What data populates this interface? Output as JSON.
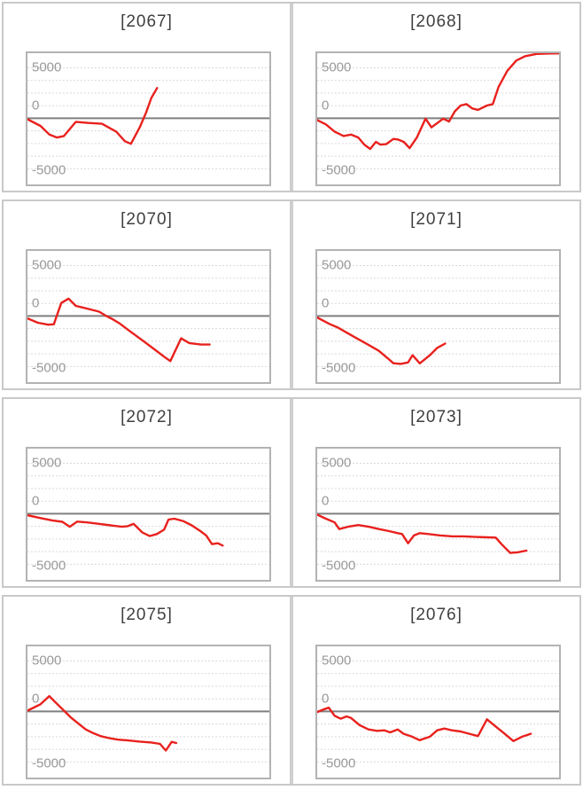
{
  "page": {
    "background": "#ffffff",
    "description": "Grid of eight small line charts (sparkline panels), two per row"
  },
  "styles": {
    "line_color": "#e8211d",
    "grid_line_color": "#d9d9d9",
    "zero_line_color": "#7f7f7f",
    "plot_border_color": "#b3b3b3",
    "cell_border_color": "#c9c9c9",
    "title_color": "#3f3f3f",
    "tick_label_color": "#999999"
  },
  "axis": {
    "y_min": -6550,
    "y_max": 6450,
    "grid_interval": 1250,
    "grid_values": [
      5000,
      3750,
      2500,
      1250,
      -1250,
      -2500,
      -3750,
      -5000
    ],
    "zero_line_value": 0,
    "ticks": [
      {
        "label": "5000",
        "value": 5000
      },
      {
        "label": "0",
        "value": 0
      },
      {
        "label": "-5000",
        "value": -5000
      }
    ]
  },
  "chart_data": [
    {
      "type": "line",
      "title": "[2067]",
      "xlabel": "",
      "ylabel": "",
      "ylim": [
        -6550,
        6450
      ],
      "points": [
        [
          0,
          -90
        ],
        [
          0.054,
          -750
        ],
        [
          0.091,
          -1610
        ],
        [
          0.122,
          -1900
        ],
        [
          0.151,
          -1750
        ],
        [
          0.2,
          -350
        ],
        [
          0.253,
          -460
        ],
        [
          0.308,
          -540
        ],
        [
          0.367,
          -1320
        ],
        [
          0.403,
          -2270
        ],
        [
          0.428,
          -2530
        ],
        [
          0.464,
          -890
        ],
        [
          0.49,
          550
        ],
        [
          0.512,
          2010
        ],
        [
          0.536,
          3000
        ]
      ]
    },
    {
      "type": "line",
      "title": "[2068]",
      "xlabel": "",
      "ylabel": "",
      "ylim": [
        -6550,
        6450
      ],
      "points": [
        [
          0,
          -170
        ],
        [
          0.036,
          -600
        ],
        [
          0.072,
          -1320
        ],
        [
          0.109,
          -1750
        ],
        [
          0.14,
          -1610
        ],
        [
          0.17,
          -1900
        ],
        [
          0.195,
          -2610
        ],
        [
          0.219,
          -3040
        ],
        [
          0.243,
          -2330
        ],
        [
          0.261,
          -2610
        ],
        [
          0.285,
          -2560
        ],
        [
          0.315,
          -2040
        ],
        [
          0.333,
          -2100
        ],
        [
          0.358,
          -2330
        ],
        [
          0.382,
          -2960
        ],
        [
          0.412,
          -1900
        ],
        [
          0.448,
          -30
        ],
        [
          0.472,
          -890
        ],
        [
          0.497,
          -460
        ],
        [
          0.521,
          -30
        ],
        [
          0.545,
          -320
        ],
        [
          0.569,
          690
        ],
        [
          0.593,
          1270
        ],
        [
          0.617,
          1410
        ],
        [
          0.641,
          980
        ],
        [
          0.665,
          840
        ],
        [
          0.702,
          1270
        ],
        [
          0.726,
          1410
        ],
        [
          0.75,
          3130
        ],
        [
          0.786,
          4710
        ],
        [
          0.823,
          5720
        ],
        [
          0.859,
          6150
        ],
        [
          0.907,
          6380
        ],
        [
          0.967,
          6420
        ],
        [
          1,
          6430
        ]
      ]
    },
    {
      "type": "line",
      "title": "[2070]",
      "xlabel": "",
      "ylabel": "",
      "ylim": [
        -6550,
        6450
      ],
      "points": [
        [
          0,
          -233
        ],
        [
          0.043,
          -663
        ],
        [
          0.086,
          -861
        ],
        [
          0.109,
          -810
        ],
        [
          0.127,
          431
        ],
        [
          0.14,
          1293
        ],
        [
          0.17,
          1724
        ],
        [
          0.2,
          1006
        ],
        [
          0.224,
          862
        ],
        [
          0.26,
          655
        ],
        [
          0.296,
          431
        ],
        [
          0.326,
          0
        ],
        [
          0.35,
          -287
        ],
        [
          0.38,
          -718
        ],
        [
          0.428,
          -1580
        ],
        [
          0.477,
          -2442
        ],
        [
          0.525,
          -3304
        ],
        [
          0.573,
          -4166
        ],
        [
          0.591,
          -4460
        ],
        [
          0.635,
          -2215
        ],
        [
          0.669,
          -2675
        ],
        [
          0.717,
          -2822
        ],
        [
          0.753,
          -2822
        ]
      ]
    },
    {
      "type": "line",
      "title": "[2071]",
      "xlabel": "",
      "ylabel": "",
      "ylim": [
        -6550,
        6450
      ],
      "points": [
        [
          0,
          -150
        ],
        [
          0.05,
          -780
        ],
        [
          0.086,
          -1150
        ],
        [
          0.128,
          -1724
        ],
        [
          0.17,
          -2300
        ],
        [
          0.213,
          -2870
        ],
        [
          0.255,
          -3448
        ],
        [
          0.291,
          -4166
        ],
        [
          0.315,
          -4680
        ],
        [
          0.345,
          -4740
        ],
        [
          0.376,
          -4597
        ],
        [
          0.394,
          -3880
        ],
        [
          0.424,
          -4690
        ],
        [
          0.466,
          -3880
        ],
        [
          0.496,
          -3160
        ],
        [
          0.529,
          -2730
        ]
      ]
    },
    {
      "type": "line",
      "title": "[2072]",
      "xlabel": "",
      "ylabel": "",
      "ylim": [
        -6550,
        6450
      ],
      "points": [
        [
          0,
          -144
        ],
        [
          0.054,
          -431
        ],
        [
          0.102,
          -660
        ],
        [
          0.144,
          -800
        ],
        [
          0.175,
          -1290
        ],
        [
          0.205,
          -775
        ],
        [
          0.247,
          -860
        ],
        [
          0.295,
          -1000
        ],
        [
          0.343,
          -1150
        ],
        [
          0.391,
          -1290
        ],
        [
          0.415,
          -1230
        ],
        [
          0.439,
          -1000
        ],
        [
          0.475,
          -1860
        ],
        [
          0.505,
          -2210
        ],
        [
          0.535,
          -2010
        ],
        [
          0.565,
          -1580
        ],
        [
          0.583,
          -575
        ],
        [
          0.607,
          -490
        ],
        [
          0.643,
          -718
        ],
        [
          0.679,
          -1150
        ],
        [
          0.715,
          -1720
        ],
        [
          0.739,
          -2150
        ],
        [
          0.763,
          -3010
        ],
        [
          0.787,
          -2925
        ],
        [
          0.807,
          -3155
        ]
      ]
    },
    {
      "type": "line",
      "title": "[2073]",
      "xlabel": "",
      "ylabel": "",
      "ylim": [
        -6550,
        6450
      ],
      "points": [
        [
          0,
          -86
        ],
        [
          0.036,
          -490
        ],
        [
          0.072,
          -860
        ],
        [
          0.091,
          -1520
        ],
        [
          0.127,
          -1290
        ],
        [
          0.17,
          -1120
        ],
        [
          0.213,
          -1290
        ],
        [
          0.255,
          -1520
        ],
        [
          0.297,
          -1720
        ],
        [
          0.333,
          -1920
        ],
        [
          0.351,
          -2010
        ],
        [
          0.376,
          -2925
        ],
        [
          0.4,
          -2150
        ],
        [
          0.424,
          -1920
        ],
        [
          0.46,
          -2010
        ],
        [
          0.509,
          -2150
        ],
        [
          0.557,
          -2240
        ],
        [
          0.605,
          -2240
        ],
        [
          0.654,
          -2300
        ],
        [
          0.702,
          -2330
        ],
        [
          0.738,
          -2360
        ],
        [
          0.762,
          -3010
        ],
        [
          0.798,
          -3880
        ],
        [
          0.829,
          -3820
        ],
        [
          0.865,
          -3650
        ]
      ]
    },
    {
      "type": "line",
      "title": "[2075]",
      "xlabel": "",
      "ylabel": "",
      "ylim": [
        -6550,
        6450
      ],
      "points": [
        [
          0,
          86
        ],
        [
          0.03,
          431
        ],
        [
          0.054,
          718
        ],
        [
          0.09,
          1520
        ],
        [
          0.12,
          800
        ],
        [
          0.151,
          86
        ],
        [
          0.181,
          -630
        ],
        [
          0.211,
          -1210
        ],
        [
          0.241,
          -1780
        ],
        [
          0.272,
          -2150
        ],
        [
          0.302,
          -2440
        ],
        [
          0.338,
          -2640
        ],
        [
          0.374,
          -2790
        ],
        [
          0.416,
          -2870
        ],
        [
          0.464,
          -2980
        ],
        [
          0.512,
          -3070
        ],
        [
          0.548,
          -3210
        ],
        [
          0.572,
          -3870
        ],
        [
          0.596,
          -3010
        ],
        [
          0.615,
          -3120
        ]
      ]
    },
    {
      "type": "line",
      "title": "[2076]",
      "xlabel": "",
      "ylabel": "",
      "ylim": [
        -6550,
        6450
      ],
      "points": [
        [
          0,
          -57
        ],
        [
          0.03,
          230
        ],
        [
          0.048,
          373
        ],
        [
          0.072,
          -430
        ],
        [
          0.097,
          -718
        ],
        [
          0.121,
          -490
        ],
        [
          0.139,
          -630
        ],
        [
          0.175,
          -1350
        ],
        [
          0.212,
          -1780
        ],
        [
          0.248,
          -1920
        ],
        [
          0.278,
          -1865
        ],
        [
          0.302,
          -2070
        ],
        [
          0.333,
          -1780
        ],
        [
          0.357,
          -2210
        ],
        [
          0.393,
          -2500
        ],
        [
          0.423,
          -2840
        ],
        [
          0.466,
          -2500
        ],
        [
          0.496,
          -1865
        ],
        [
          0.526,
          -1690
        ],
        [
          0.557,
          -1865
        ],
        [
          0.593,
          -1980
        ],
        [
          0.629,
          -2210
        ],
        [
          0.665,
          -2440
        ],
        [
          0.702,
          -775
        ],
        [
          0.738,
          -1490
        ],
        [
          0.775,
          -2210
        ],
        [
          0.811,
          -2930
        ],
        [
          0.847,
          -2500
        ],
        [
          0.883,
          -2210
        ]
      ]
    }
  ],
  "layout": {
    "rows": 4,
    "columns": 2
  }
}
